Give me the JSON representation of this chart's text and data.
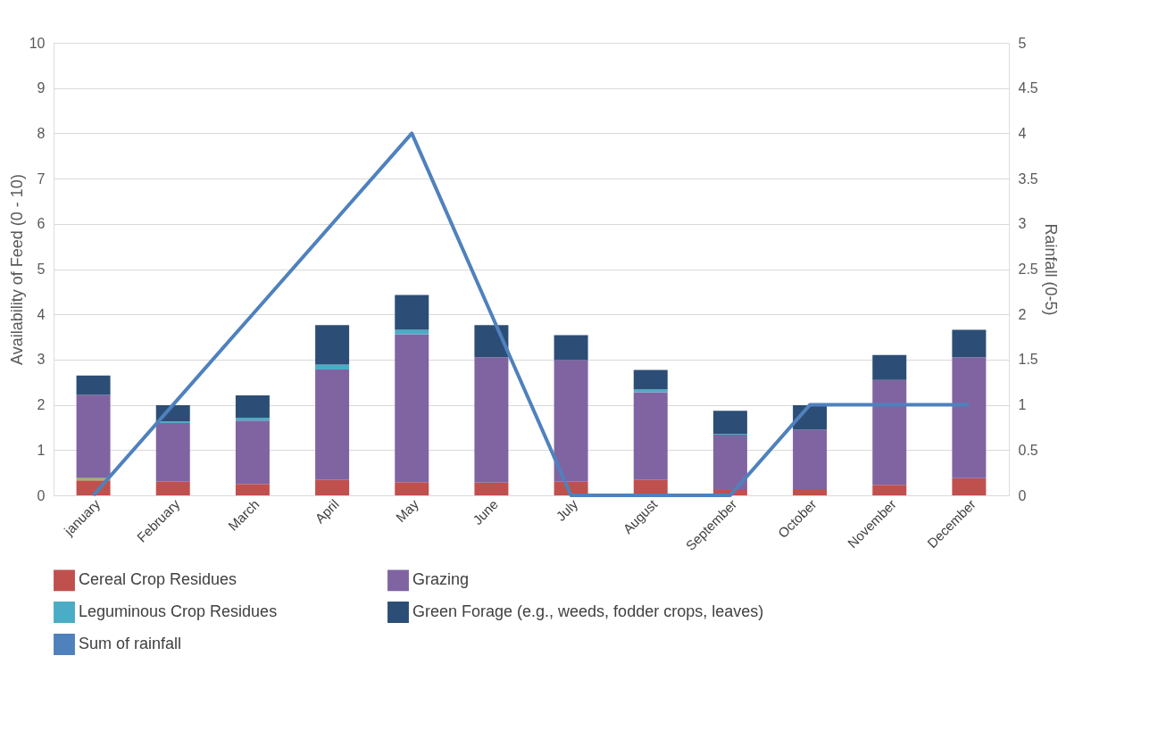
{
  "chart_data": {
    "type": "bar",
    "stacked": true,
    "ylabel": "Availability of Feed (0 - 10)",
    "y2label": "Rainfall (0-5)",
    "categories": [
      "january",
      "February",
      "March",
      "April",
      "May",
      "June",
      "July",
      "August",
      "September",
      "October",
      "November",
      "December"
    ],
    "series": [
      {
        "name": "Cereal Crop Residues",
        "color": "#c0504d",
        "values": [
          0.33,
          0.3,
          0.25,
          0.34,
          0.29,
          0.28,
          0.3,
          0.34,
          0.12,
          0.14,
          0.23,
          0.38
        ]
      },
      {
        "color": "#9bbb59",
        "values": [
          0.05,
          null,
          null,
          null,
          null,
          null,
          null,
          null,
          null,
          null,
          null,
          null
        ]
      },
      {
        "name": "Grazing",
        "color": "#8064a2",
        "values": [
          1.84,
          1.3,
          1.4,
          2.44,
          3.27,
          2.77,
          2.69,
          1.94,
          1.22,
          1.31,
          2.32,
          2.67
        ]
      },
      {
        "name": "Leguminous Crop Residues",
        "color": "#4bacc6",
        "values": [
          null,
          0.03,
          0.06,
          0.11,
          0.1,
          null,
          null,
          0.06,
          0.02,
          null,
          null,
          null
        ]
      },
      {
        "name": "Green Forage (e.g., weeds, fodder crops, leaves)",
        "color": "#2c4e76",
        "values": [
          0.43,
          0.36,
          0.5,
          0.87,
          0.77,
          0.71,
          0.55,
          0.43,
          0.51,
          0.54,
          0.55,
          0.61
        ]
      },
      {
        "name": "Sum of rainfall",
        "type": "line",
        "axis": "y2",
        "color": "#4f81bd",
        "values": [
          0,
          1,
          2,
          3,
          4,
          2,
          0,
          0,
          0,
          1,
          1,
          1
        ]
      }
    ],
    "ylim": [
      0,
      10
    ],
    "yticks": [
      0,
      1,
      2,
      3,
      4,
      5,
      6,
      7,
      8,
      9,
      10
    ],
    "y2lim": [
      0,
      5
    ],
    "y2ticks": [
      0,
      0.5,
      1,
      1.5,
      2,
      2.5,
      3,
      3.5,
      4,
      4.5,
      5
    ],
    "grid": "y",
    "legend": "bottom"
  }
}
